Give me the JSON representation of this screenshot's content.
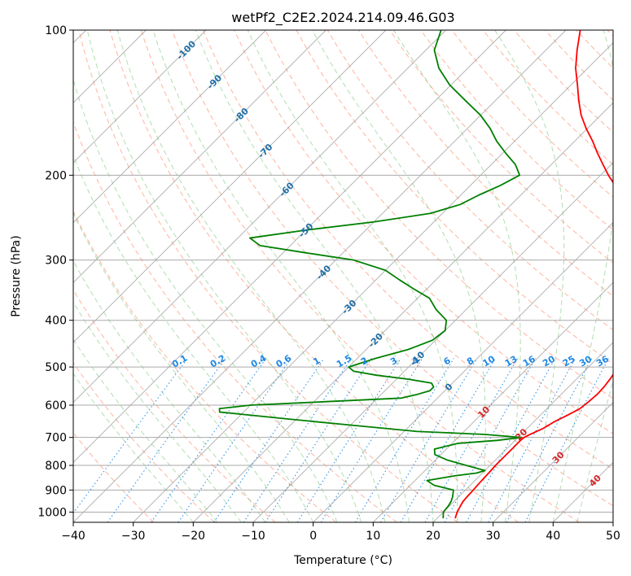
{
  "chart_data": {
    "type": "line",
    "title": "wetPf2_C2E2.2024.214.09.46.G03",
    "xlabel": "Temperature (°C)",
    "ylabel": "Pressure (hPa)",
    "xlim": [
      -40,
      50
    ],
    "ylim": [
      1050,
      100
    ],
    "y_scale": "log",
    "grid": true,
    "x_ticks": [
      -40,
      -30,
      -20,
      -10,
      0,
      10,
      20,
      30,
      40,
      50
    ],
    "y_ticks": [
      100,
      200,
      300,
      400,
      500,
      600,
      700,
      800,
      900,
      1000
    ],
    "colors": {
      "temperature": "#ff0000",
      "dewpoint": "#008000",
      "isotherm": "#999999",
      "dry_adiabat": "#ff6a3d",
      "moist_adiabat": "#66bb66",
      "mixing_ratio": "#1e88e5",
      "dry_label": "#1f6fa8",
      "moist_label": "#d62728"
    },
    "mixing_ratio_labels": [
      "0.1",
      "0.2",
      "0.4",
      "0.6",
      "1",
      "1.5",
      "2",
      "3",
      "4",
      "6",
      "8",
      "10",
      "13",
      "16",
      "20",
      "25",
      "30",
      "36"
    ],
    "mixing_ratio_values": [
      0.1,
      0.2,
      0.4,
      0.6,
      1,
      1.5,
      2,
      3,
      4,
      6,
      8,
      10,
      13,
      16,
      20,
      25,
      30,
      36
    ],
    "dry_adiabat_labels": [
      {
        "text": "-100",
        "t": -100,
        "p": 110
      },
      {
        "text": "-90",
        "t": -90,
        "p": 128
      },
      {
        "text": "-80",
        "t": -80,
        "p": 150
      },
      {
        "text": "-70",
        "t": -70,
        "p": 178
      },
      {
        "text": "-60",
        "t": -60,
        "p": 214
      },
      {
        "text": "-50",
        "t": -50,
        "p": 260
      },
      {
        "text": "-40",
        "t": -40,
        "p": 318
      },
      {
        "text": "-30",
        "t": -30,
        "p": 375
      },
      {
        "text": "-20",
        "t": -20,
        "p": 440
      },
      {
        "text": "-10",
        "t": -10,
        "p": 480
      },
      {
        "text": "0",
        "t": 0,
        "p": 550
      }
    ],
    "moist_adiabat_labels": [
      {
        "text": "10",
        "t": 10,
        "p": 620
      },
      {
        "text": "20",
        "t": 20,
        "p": 690
      },
      {
        "text": "30",
        "t": 30,
        "p": 770
      },
      {
        "text": "40",
        "t": 40,
        "p": 860
      }
    ],
    "series": [
      {
        "key": "temperature",
        "p": [
          1030,
          1000,
          970,
          950,
          930,
          900,
          880,
          850,
          820,
          800,
          760,
          730,
          710,
          700,
          690,
          670,
          650,
          630,
          610,
          590,
          570,
          550,
          530,
          510,
          490,
          470,
          450,
          430,
          410,
          390,
          370,
          350,
          330,
          315,
          300,
          280,
          260,
          240,
          220,
          200,
          190,
          180,
          170,
          160,
          150,
          140,
          130,
          120,
          110,
          100
        ],
        "t": [
          23.0,
          22.3,
          21.8,
          21.5,
          21.4,
          21.3,
          21.2,
          21.1,
          21.0,
          20.9,
          20.9,
          20.9,
          20.9,
          21.0,
          21.5,
          22.7,
          23.4,
          24.5,
          25.5,
          25.8,
          26.0,
          25.9,
          25.6,
          25.2,
          24.6,
          23.8,
          22.7,
          21.3,
          19.6,
          18.2,
          17.5,
          16.9,
          16.0,
          14.2,
          11.6,
          8.6,
          5.2,
          1.2,
          -3.2,
          -8.7,
          -11.4,
          -14.2,
          -17.0,
          -20.2,
          -23.3,
          -26.1,
          -28.9,
          -32.0,
          -34.8,
          -37.6
        ]
      },
      {
        "key": "dewpoint",
        "p": [
          1030,
          1000,
          970,
          950,
          930,
          900,
          880,
          860,
          840,
          830,
          820,
          800,
          780,
          760,
          740,
          720,
          710,
          700,
          690,
          680,
          660,
          640,
          620,
          610,
          600,
          590,
          580,
          570,
          560,
          550,
          540,
          530,
          520,
          510,
          500,
          480,
          460,
          440,
          420,
          400,
          380,
          360,
          345,
          330,
          315,
          300,
          290,
          280,
          270,
          260,
          250,
          240,
          230,
          220,
          210,
          200,
          190,
          180,
          170,
          160,
          150,
          140,
          130,
          120,
          110,
          100
        ],
        "t": [
          21.0,
          20.0,
          19.8,
          19.5,
          19.0,
          18.0,
          14.0,
          12.0,
          16.0,
          19.0,
          20.0,
          16.0,
          12.0,
          9.0,
          8.0,
          11.0,
          17.0,
          20.5,
          14.0,
          2.0,
          -10.0,
          -22.0,
          -34.0,
          -34.6,
          -30.0,
          -18.0,
          -6.0,
          -4.0,
          -2.5,
          -2.5,
          -3.5,
          -8.0,
          -14.0,
          -18.5,
          -20.0,
          -17.0,
          -13.0,
          -10.5,
          -10.0,
          -11.5,
          -15.0,
          -18.0,
          -22.0,
          -26.0,
          -30.0,
          -37.0,
          -46.0,
          -55.0,
          -58.0,
          -50.0,
          -40.0,
          -32.0,
          -28.5,
          -27.0,
          -25.0,
          -23.5,
          -26.0,
          -29.5,
          -33.0,
          -36.2,
          -40.1,
          -45.0,
          -50.2,
          -54.8,
          -58.6,
          -60.8
        ]
      }
    ]
  }
}
